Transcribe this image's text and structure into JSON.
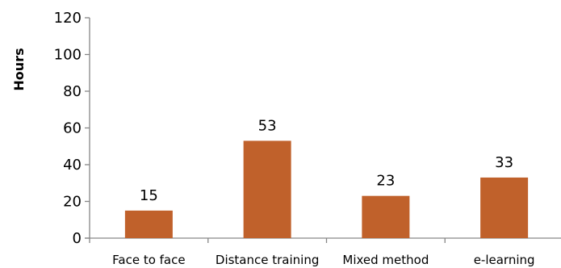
{
  "chart_data": {
    "type": "bar",
    "title": "",
    "xlabel": "",
    "ylabel": "Hours",
    "ylim": [
      0,
      120
    ],
    "yticks": [
      0,
      20,
      40,
      60,
      80,
      100,
      120
    ],
    "categories": [
      "Face to face",
      "Distance training",
      "Mixed method",
      "e-learning"
    ],
    "values": [
      15,
      53,
      23,
      33
    ],
    "data_labels": [
      "15",
      "53",
      "23",
      "33"
    ],
    "grid": false,
    "legend": "none",
    "bar_color": "#C0612B",
    "axis_color": "#868686"
  }
}
